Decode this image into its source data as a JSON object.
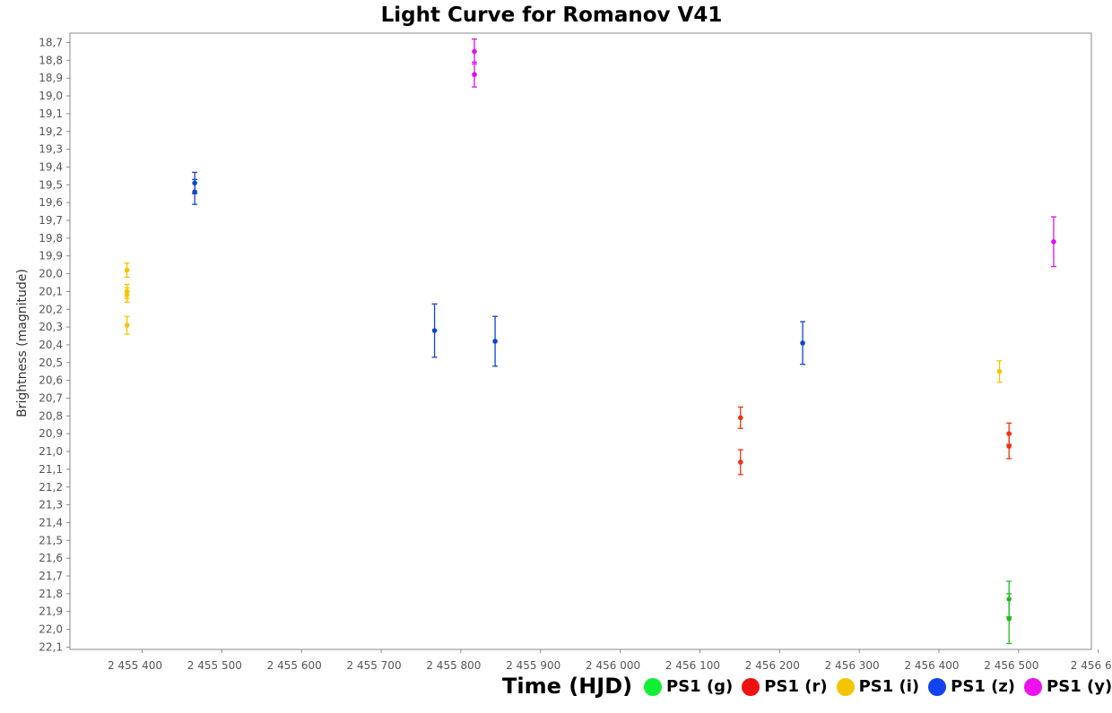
{
  "chart_data": {
    "type": "scatter",
    "title": "Light Curve for Romanov V41",
    "xlabel": "Time (HJD)",
    "ylabel": "Brightness (magnitude)",
    "xlim": [
      2455350,
      2456600
    ],
    "ylim": [
      18.67,
      22.1
    ],
    "y_inverted": true,
    "grid": false,
    "legend_position": "bottom",
    "x_ticks": [
      "2 455 400",
      "2 455 500",
      "2 455 600",
      "2 455 700",
      "2 455 800",
      "2 455 900",
      "2 456 000",
      "2 456 100",
      "2 456 200",
      "2 456 300",
      "2 456 400",
      "2 456 500",
      "2 456 6"
    ],
    "y_ticks": [
      "18,7",
      "18,8",
      "18,9",
      "19,0",
      "19,1",
      "19,2",
      "19,3",
      "19,4",
      "19,5",
      "19,6",
      "19,7",
      "19,8",
      "19,9",
      "20,0",
      "20,1",
      "20,2",
      "20,3",
      "20,4",
      "20,5",
      "20,6",
      "20,7",
      "20,8",
      "20,9",
      "21,0",
      "21,1",
      "21,2",
      "21,3",
      "21,4",
      "21,5",
      "21,6",
      "21,7",
      "21,8",
      "21,9",
      "22,0",
      "22,1"
    ],
    "series": [
      {
        "name": "PS1 (g)",
        "color": "#22bb22",
        "points": [
          {
            "x": 2456488,
            "y": 21.83,
            "err": 0.1
          },
          {
            "x": 2456488,
            "y": 21.94,
            "err": 0.14
          }
        ]
      },
      {
        "name": "PS1 (r)",
        "color": "#ee3311",
        "points": [
          {
            "x": 2456151,
            "y": 20.81,
            "err": 0.06
          },
          {
            "x": 2456151,
            "y": 21.06,
            "err": 0.07
          },
          {
            "x": 2456488,
            "y": 20.9,
            "err": 0.06
          },
          {
            "x": 2456488,
            "y": 20.97,
            "err": 0.07
          }
        ]
      },
      {
        "name": "PS1 (i)",
        "color": "#f5c400",
        "points": [
          {
            "x": 2455381,
            "y": 19.98,
            "err": 0.04
          },
          {
            "x": 2455381,
            "y": 20.1,
            "err": 0.04
          },
          {
            "x": 2455381,
            "y": 20.12,
            "err": 0.04
          },
          {
            "x": 2455381,
            "y": 20.29,
            "err": 0.05
          },
          {
            "x": 2456476,
            "y": 20.55,
            "err": 0.06
          }
        ]
      },
      {
        "name": "PS1 (z)",
        "color": "#1144cc",
        "points": [
          {
            "x": 2455466,
            "y": 19.49,
            "err": 0.06
          },
          {
            "x": 2455466,
            "y": 19.54,
            "err": 0.07
          },
          {
            "x": 2455767,
            "y": 20.32,
            "err": 0.15
          },
          {
            "x": 2455843,
            "y": 20.38,
            "err": 0.14
          },
          {
            "x": 2456229,
            "y": 20.39,
            "err": 0.12
          }
        ]
      },
      {
        "name": "PS1 (y)",
        "color": "#dd11ee",
        "points": [
          {
            "x": 2455817,
            "y": 18.75,
            "err": 0.07
          },
          {
            "x": 2455817,
            "y": 18.88,
            "err": 0.07
          },
          {
            "x": 2456544,
            "y": 19.82,
            "err": 0.14
          }
        ]
      }
    ]
  },
  "legend": {
    "items": [
      {
        "label": "PS1 (g)",
        "color": "#11ee33"
      },
      {
        "label": "PS1 (r)",
        "color": "#ee1111"
      },
      {
        "label": "PS1 (i)",
        "color": "#f5c400"
      },
      {
        "label": "PS1 (z)",
        "color": "#1144ee"
      },
      {
        "label": "PS1 (y)",
        "color": "#ee11ee"
      }
    ]
  }
}
